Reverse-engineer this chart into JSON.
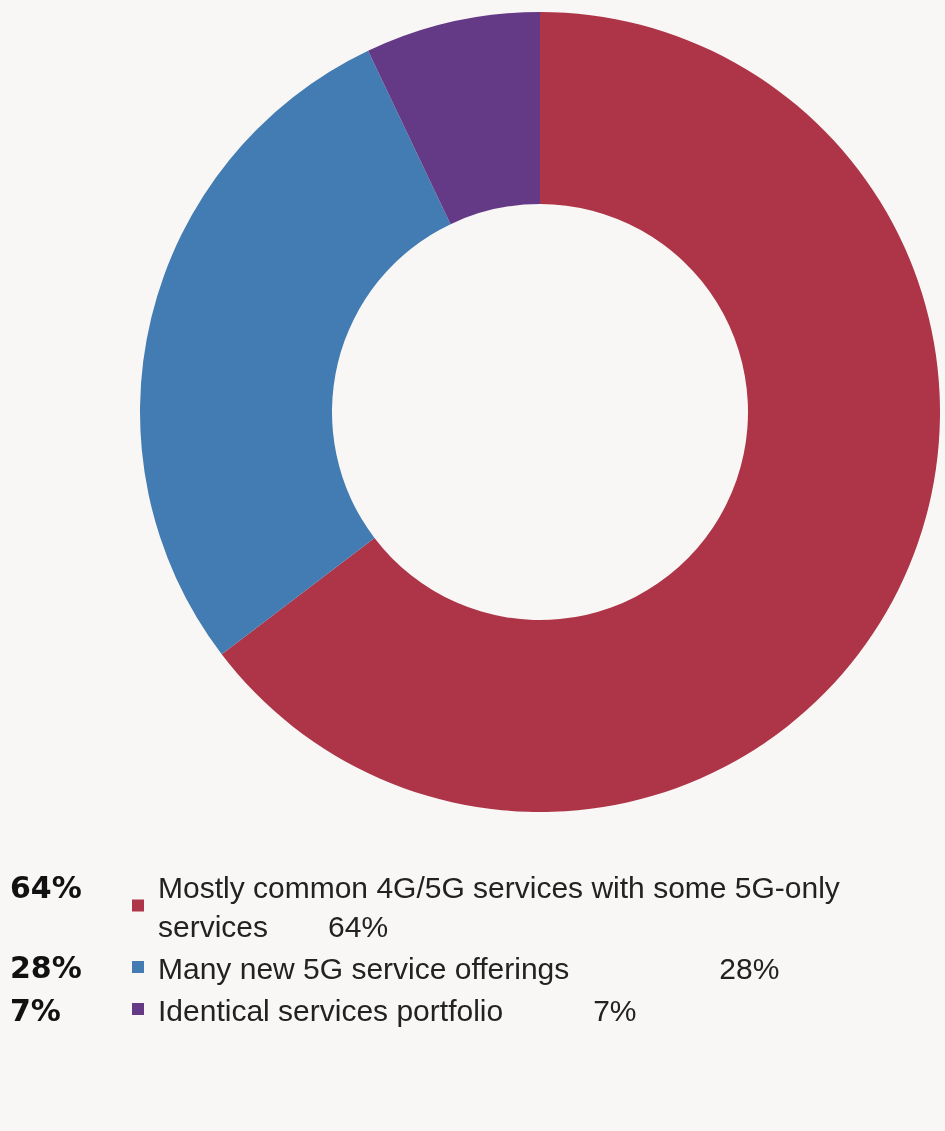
{
  "chart_data": {
    "type": "donut",
    "categories": [
      "Mostly common 4G/5G services with some 5G-only services    64%",
      "Many new 5G service offerings          28%",
      "Identical services portfolio      7%"
    ],
    "values": [
      64,
      28,
      7
    ],
    "value_labels": [
      "64%",
      "28%",
      "7%"
    ],
    "colors": [
      "#ae3548",
      "#427cb2",
      "#643a86"
    ],
    "legend": "bottom"
  }
}
